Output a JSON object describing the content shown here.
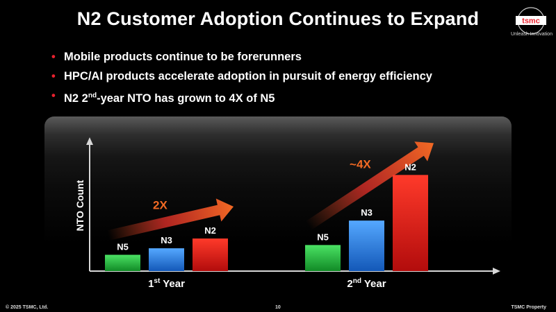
{
  "slide": {
    "title": "N2 Customer Adoption Continues to Expand",
    "logo_text": "tsmc",
    "logo_tagline": "Unleash Innovation",
    "bullets": [
      "Mobile products continue to be forerunners",
      "HPC/AI products accelerate adoption in pursuit of energy efficiency",
      "N2 2nd-year NTO has grown to 4X of N5"
    ],
    "footer": {
      "copyright": "© 2025 TSMC, Ltd.",
      "page_number": "10",
      "property": "TSMC Property"
    }
  },
  "colors": {
    "accent_red": "#e8212e",
    "arrow_orange": "#f05a22",
    "n5_green": "#22c040",
    "n3_blue": "#2a86e8",
    "n2_red": "#e01818"
  },
  "chart_data": {
    "type": "bar",
    "ylabel": "NTO Count",
    "groups": [
      {
        "label_main": "1",
        "label_sup": "st",
        "label_rest": " Year",
        "arrow_label": "2X",
        "bars": [
          {
            "name": "N5",
            "value": 1.0
          },
          {
            "name": "N3",
            "value": 1.4
          },
          {
            "name": "N2",
            "value": 2.0
          }
        ]
      },
      {
        "label_main": "2",
        "label_sup": "nd",
        "label_rest": " Year",
        "arrow_label": "~4X",
        "bars": [
          {
            "name": "N5",
            "value": 1.6
          },
          {
            "name": "N3",
            "value": 3.1
          },
          {
            "name": "N2",
            "value": 5.9
          }
        ]
      }
    ]
  }
}
